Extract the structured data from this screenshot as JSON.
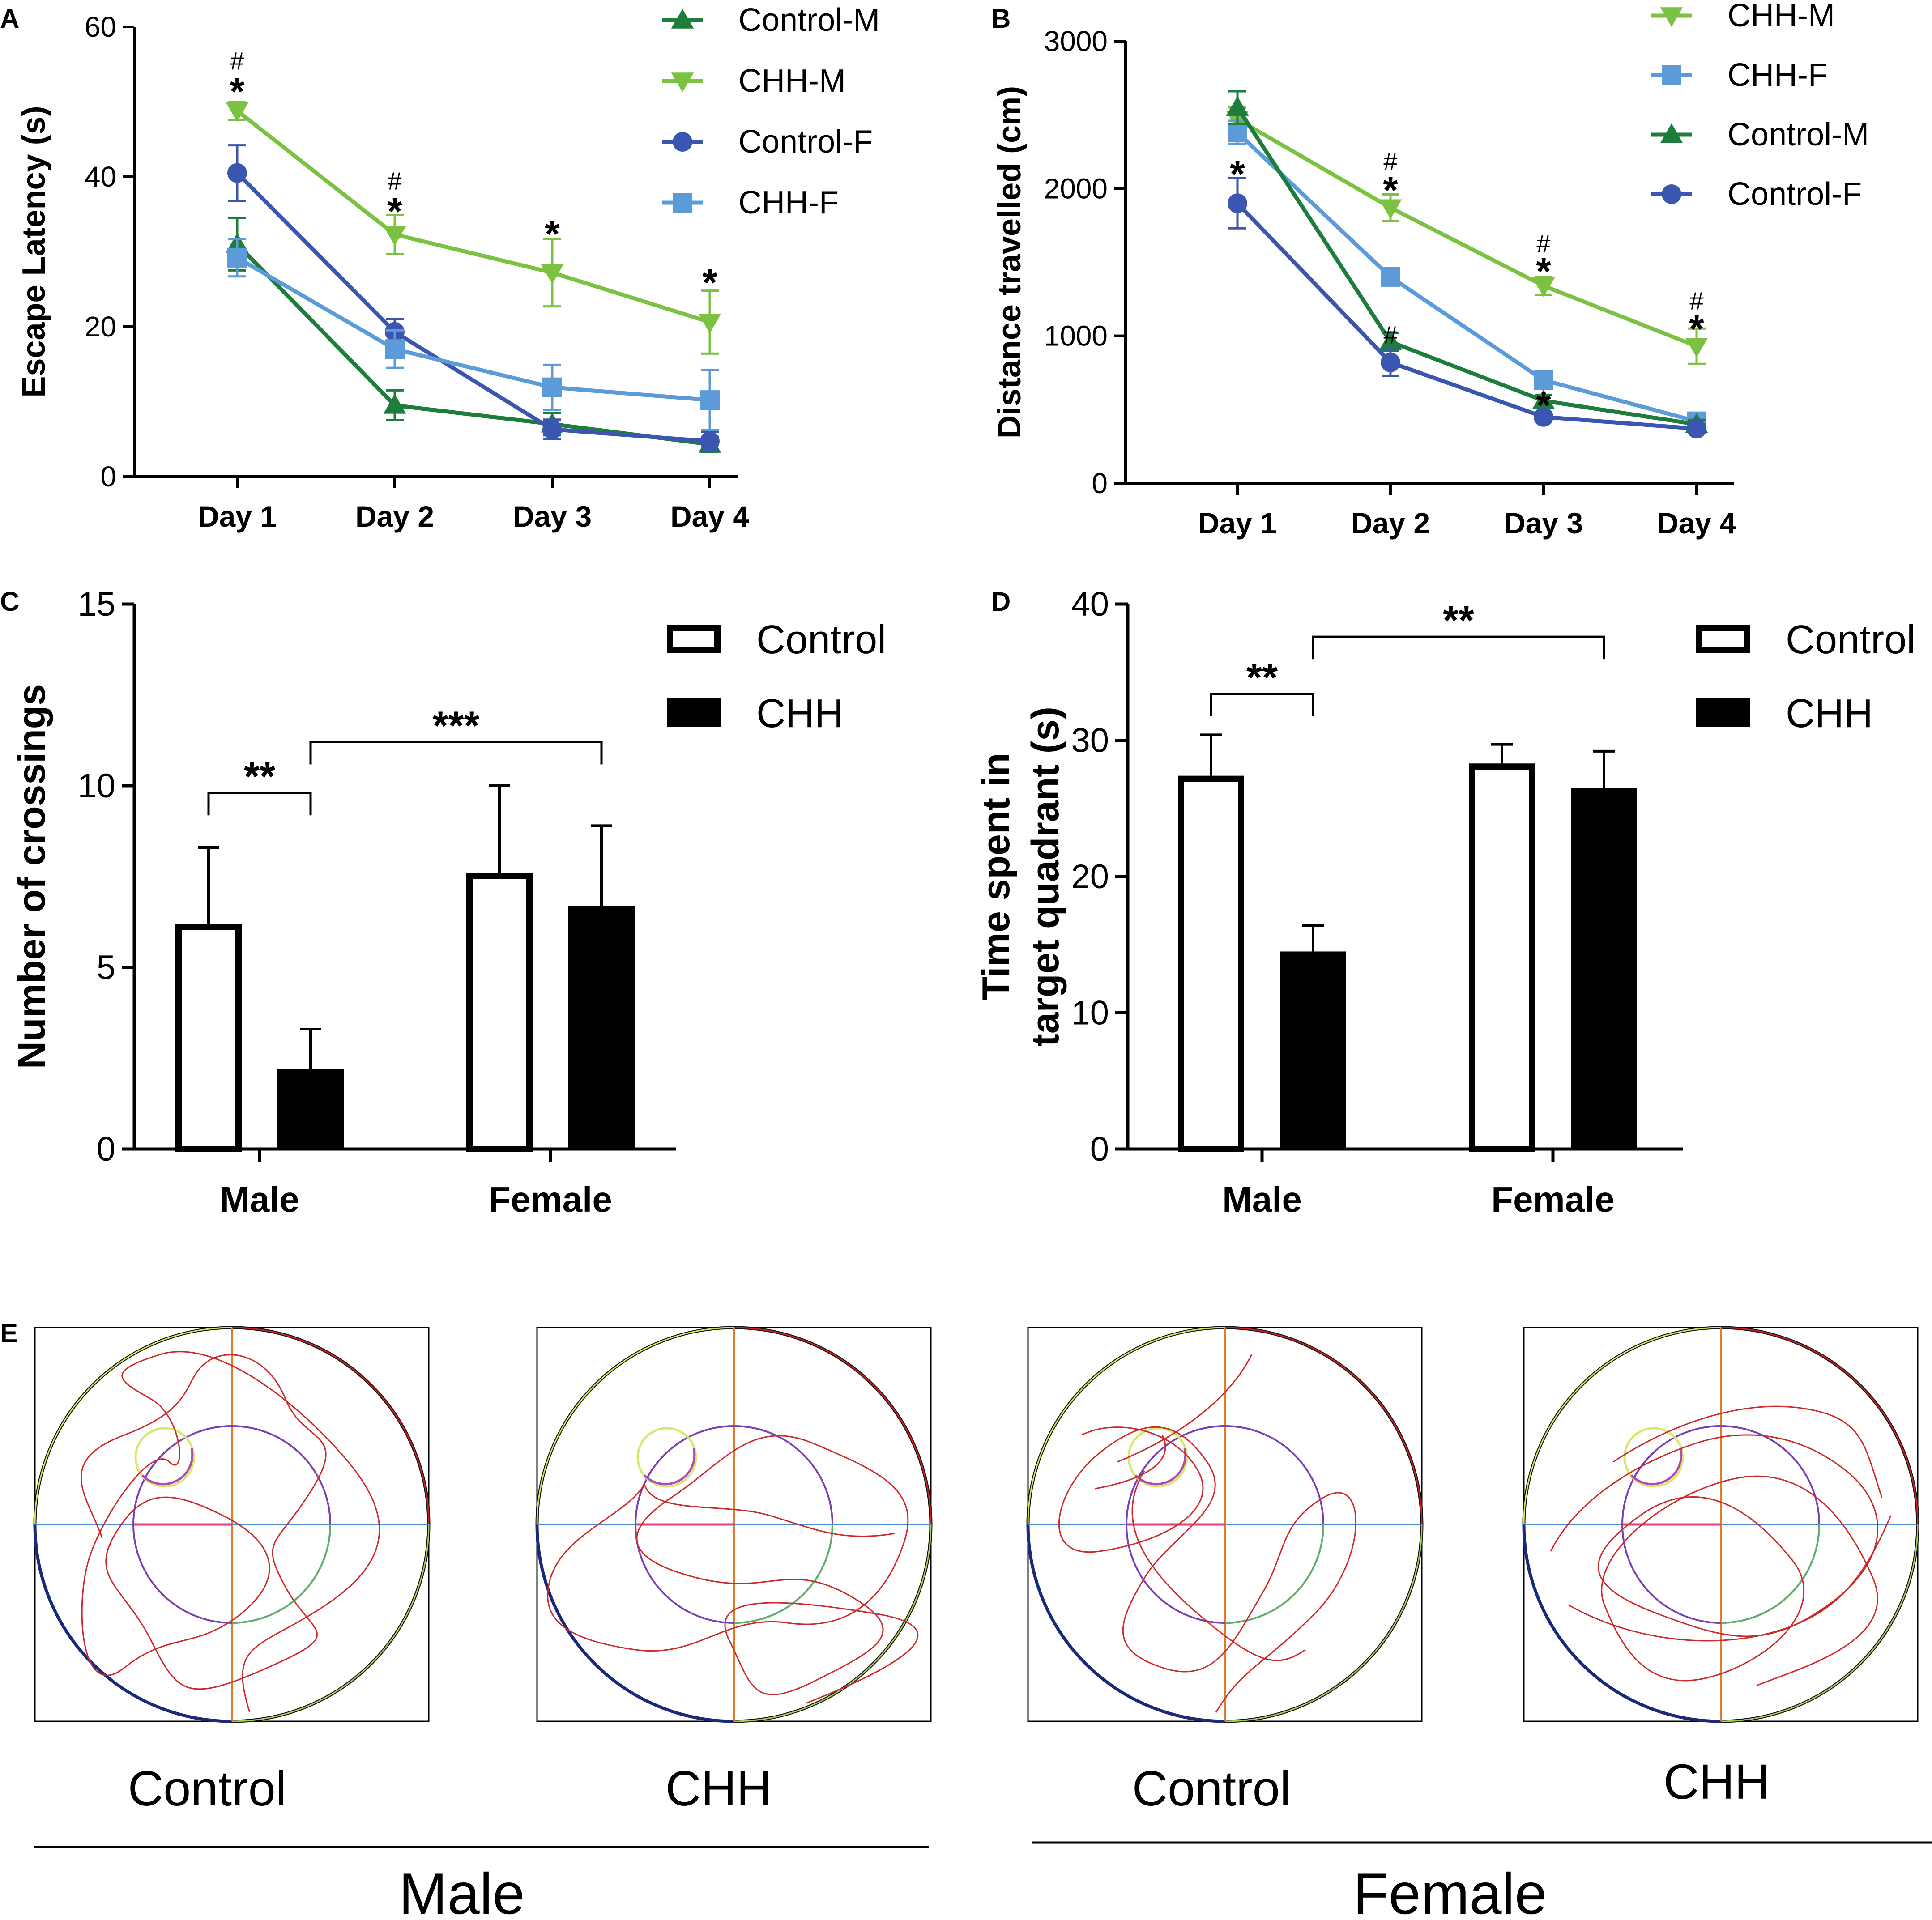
{
  "figure": {
    "panel_labels": [
      "A",
      "B",
      "C",
      "D",
      "E"
    ]
  },
  "colors": {
    "control_m": "#1e7d3a",
    "chh_m": "#7cc242",
    "control_f": "#3b56b0",
    "chh_f": "#5b9bd9",
    "axis": "#000000",
    "track": "#cc2a2a"
  },
  "chart_data": [
    {
      "id": "A",
      "type": "line",
      "title": "",
      "xlabel": "",
      "ylabel": "Escape Latency (s)",
      "categories": [
        "Day 1",
        "Day 2",
        "Day 3",
        "Day 4"
      ],
      "ylim": [
        0,
        60
      ],
      "yticks": [
        0,
        20,
        40,
        60
      ],
      "legend": [
        "Control-M",
        "CHH-M",
        "Control-F",
        "CHH-F"
      ],
      "series": [
        {
          "name": "Control-M",
          "marker": "triangle-up",
          "color": "#1e7d3a",
          "values": [
            31,
            9.5,
            7,
            4.3
          ],
          "errors": [
            3.5,
            2,
            1.5,
            1
          ]
        },
        {
          "name": "CHH-M",
          "marker": "triangle-down",
          "color": "#7cc242",
          "values": [
            48.8,
            32.3,
            27.2,
            20.6
          ],
          "errors": [
            1.2,
            2.6,
            4.5,
            4.2
          ]
        },
        {
          "name": "Control-F",
          "marker": "circle",
          "color": "#3b56b0",
          "values": [
            40.5,
            19.3,
            6.3,
            4.7
          ],
          "errors": [
            3.7,
            1.7,
            1.3,
            1.3
          ]
        },
        {
          "name": "CHH-F",
          "marker": "square",
          "color": "#5b9bd9",
          "values": [
            29.2,
            17,
            11.9,
            10.2
          ],
          "errors": [
            2.5,
            2.5,
            3,
            4
          ]
        }
      ],
      "annotations": [
        {
          "text": "*",
          "category": "Day 1",
          "y": 52
        },
        {
          "text": "#",
          "category": "Day 1",
          "y": 55.5
        },
        {
          "text": "*",
          "category": "Day 2",
          "y": 36
        },
        {
          "text": "#",
          "category": "Day 2",
          "y": 39.5
        },
        {
          "text": "*",
          "category": "Day 3",
          "y": 33
        },
        {
          "text": "*",
          "category": "Day 4",
          "y": 26.5
        }
      ]
    },
    {
      "id": "B",
      "type": "line",
      "title": "",
      "xlabel": "",
      "ylabel": "Distance travelled (cm)",
      "categories": [
        "Day 1",
        "Day 2",
        "Day 3",
        "Day 4"
      ],
      "ylim": [
        0,
        3000
      ],
      "yticks": [
        0,
        1000,
        2000,
        3000
      ],
      "legend": [
        "CHH-M",
        "CHH-F",
        "Control-M",
        "Control-F"
      ],
      "series": [
        {
          "name": "CHH-M",
          "marker": "triangle-down",
          "color": "#7cc242",
          "values": [
            2470,
            1870,
            1340,
            930
          ],
          "errors": [
            80,
            90,
            60,
            120
          ]
        },
        {
          "name": "CHH-F",
          "marker": "square",
          "color": "#5b9bd9",
          "values": [
            2380,
            1400,
            700,
            420
          ],
          "errors": [
            80,
            50,
            60,
            40
          ]
        },
        {
          "name": "Control-M",
          "marker": "triangle-up",
          "color": "#1e7d3a",
          "values": [
            2550,
            960,
            560,
            400
          ],
          "errors": [
            110,
            60,
            40,
            30
          ]
        },
        {
          "name": "Control-F",
          "marker": "circle",
          "color": "#3b56b0",
          "values": [
            1900,
            820,
            450,
            370
          ],
          "errors": [
            170,
            90,
            30,
            30
          ]
        }
      ],
      "annotations": [
        {
          "text": "*",
          "category": "Day 1",
          "y": 2130
        },
        {
          "text": "*",
          "category": "Day 2",
          "y": 2020
        },
        {
          "text": "#",
          "category": "Day 2",
          "y": 2190
        },
        {
          "text": "#",
          "category": "Day 2",
          "y": 1010
        },
        {
          "text": "*",
          "category": "Day 3",
          "y": 1470
        },
        {
          "text": "#",
          "category": "Day 3",
          "y": 1630
        },
        {
          "text": "*",
          "category": "Day 3",
          "y": 560
        },
        {
          "text": "*",
          "category": "Day 4",
          "y": 1080
        },
        {
          "text": "#",
          "category": "Day 4",
          "y": 1240
        }
      ]
    },
    {
      "id": "C",
      "type": "bar",
      "title": "",
      "xlabel": "",
      "ylabel": "Number of crossings",
      "categories": [
        "Male",
        "Female"
      ],
      "ylim": [
        0,
        15
      ],
      "yticks": [
        0,
        5,
        10,
        15
      ],
      "legend": [
        "Control",
        "CHH"
      ],
      "series": [
        {
          "name": "Control",
          "fill": "open",
          "values": [
            6.2,
            7.6
          ],
          "errors": [
            2.1,
            2.4
          ]
        },
        {
          "name": "CHH",
          "fill": "solid",
          "values": [
            2.2,
            6.7
          ],
          "errors": [
            1.1,
            2.2
          ]
        }
      ],
      "significance": [
        {
          "label": "**",
          "from": "Male-Control",
          "to": "Male-CHH",
          "y": 9.8
        },
        {
          "label": "***",
          "from": "Male-CHH",
          "to": "Female-CHH",
          "y": 11.2
        }
      ]
    },
    {
      "id": "D",
      "type": "bar",
      "title": "",
      "xlabel": "",
      "ylabel": "Time spent in target quadrant (s)",
      "ylabel_lines": [
        "Time spent in",
        "target quadrant (s)"
      ],
      "categories": [
        "Male",
        "Female"
      ],
      "ylim": [
        0,
        40
      ],
      "yticks": [
        0,
        10,
        20,
        30,
        40
      ],
      "legend": [
        "Control",
        "CHH"
      ],
      "series": [
        {
          "name": "Control",
          "fill": "open",
          "values": [
            27.4,
            28.3
          ],
          "errors": [
            3,
            1.4
          ]
        },
        {
          "name": "CHH",
          "fill": "solid",
          "values": [
            14.5,
            26.5
          ],
          "errors": [
            1.9,
            2.7
          ]
        }
      ],
      "significance": [
        {
          "label": "**",
          "from": "Male-Control",
          "to": "Male-CHH",
          "y": 33.4
        },
        {
          "label": "**",
          "from": "Male-CHH",
          "to": "Female-CHH",
          "y": 37.6
        }
      ]
    }
  ],
  "panel_e": {
    "tracks": [
      {
        "label": "Control",
        "group": "Male"
      },
      {
        "label": "CHH",
        "group": "Male"
      },
      {
        "label": "Control",
        "group": "Female"
      },
      {
        "label": "CHH",
        "group": "Female"
      }
    ],
    "groups": [
      "Male",
      "Female"
    ]
  }
}
